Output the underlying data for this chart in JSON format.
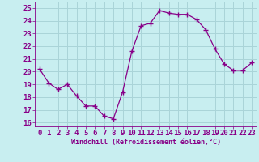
{
  "x": [
    0,
    1,
    2,
    3,
    4,
    5,
    6,
    7,
    8,
    9,
    10,
    11,
    12,
    13,
    14,
    15,
    16,
    17,
    18,
    19,
    20,
    21,
    22,
    23
  ],
  "y": [
    20.2,
    19.1,
    18.6,
    19.0,
    18.1,
    17.3,
    17.3,
    16.5,
    16.3,
    18.4,
    21.6,
    23.6,
    23.8,
    24.8,
    24.6,
    24.5,
    24.5,
    24.1,
    23.3,
    21.8,
    20.6,
    20.1,
    20.1,
    20.7
  ],
  "line_color": "#880088",
  "marker": "+",
  "marker_size": 4,
  "bg_color": "#c8eef0",
  "grid_color": "#aad4d8",
  "xlabel": "Windchill (Refroidissement éolien,°C)",
  "ylabel_ticks": [
    16,
    17,
    18,
    19,
    20,
    21,
    22,
    23,
    24,
    25
  ],
  "xlim": [
    -0.5,
    23.5
  ],
  "ylim": [
    15.7,
    25.5
  ],
  "tick_fontsize": 6.5,
  "xlabel_fontsize": 6.0
}
